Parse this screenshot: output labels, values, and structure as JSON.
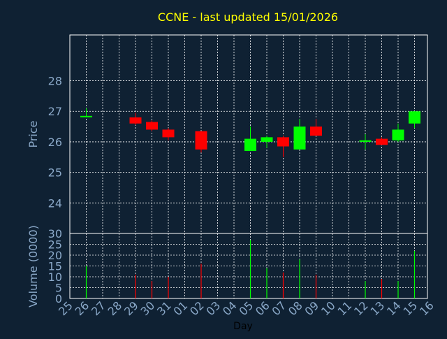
{
  "chart_data": {
    "type": "candlestick",
    "title": "CCNE - last updated 15/01/2026",
    "xlabel": "Day",
    "x_ticks": [
      "25",
      "26",
      "27",
      "28",
      "29",
      "30",
      "31",
      "01",
      "02",
      "03",
      "04",
      "05",
      "06",
      "07",
      "08",
      "09",
      "10",
      "11",
      "12",
      "13",
      "14",
      "15",
      "16"
    ],
    "price_panel": {
      "ylabel": "Price",
      "ylim": [
        23,
        29.5
      ],
      "y_ticks": [
        24,
        25,
        26,
        27,
        28
      ],
      "grid": true
    },
    "volume_panel": {
      "ylabel": "Volume (0000)",
      "ylim": [
        0,
        30
      ],
      "y_ticks": [
        0,
        5,
        10,
        15,
        20,
        25,
        30
      ],
      "grid": true
    },
    "candles": [
      {
        "day": "26",
        "open": 26.85,
        "high": 27.1,
        "low": 26.8,
        "close": 26.85,
        "volume": 15
      },
      {
        "day": "29",
        "open": 26.8,
        "high": 26.95,
        "low": 26.55,
        "close": 26.6,
        "volume": 11
      },
      {
        "day": "30",
        "open": 26.65,
        "high": 26.7,
        "low": 26.35,
        "close": 26.4,
        "volume": 8
      },
      {
        "day": "31",
        "open": 26.4,
        "high": 26.45,
        "low": 26.05,
        "close": 26.15,
        "volume": 10
      },
      {
        "day": "02",
        "open": 26.35,
        "high": 26.35,
        "low": 25.65,
        "close": 25.75,
        "volume": 16
      },
      {
        "day": "05",
        "open": 25.7,
        "high": 26.5,
        "low": 25.7,
        "close": 26.1,
        "volume": 27
      },
      {
        "day": "06",
        "open": 26.0,
        "high": 26.2,
        "low": 25.8,
        "close": 26.15,
        "volume": 14
      },
      {
        "day": "07",
        "open": 26.15,
        "high": 26.2,
        "low": 25.5,
        "close": 25.85,
        "volume": 12
      },
      {
        "day": "08",
        "open": 25.75,
        "high": 26.75,
        "low": 25.75,
        "close": 26.5,
        "volume": 18
      },
      {
        "day": "09",
        "open": 26.5,
        "high": 26.75,
        "low": 26.2,
        "close": 26.2,
        "volume": 11
      },
      {
        "day": "12",
        "open": 26.0,
        "high": 26.25,
        "low": 25.75,
        "close": 26.05,
        "volume": 8
      },
      {
        "day": "13",
        "open": 26.1,
        "high": 26.15,
        "low": 25.9,
        "close": 25.9,
        "volume": 9
      },
      {
        "day": "14",
        "open": 26.05,
        "high": 26.6,
        "low": 26.0,
        "close": 26.4,
        "volume": 8
      },
      {
        "day": "15",
        "open": 26.6,
        "high": 27.0,
        "low": 26.45,
        "close": 27.0,
        "volume": 22
      }
    ],
    "colors": {
      "up": "#00ff00",
      "down": "#ff0000",
      "title": "#ffff00",
      "axis_text": "#8aa8c8",
      "grid": "#ffffff"
    }
  }
}
